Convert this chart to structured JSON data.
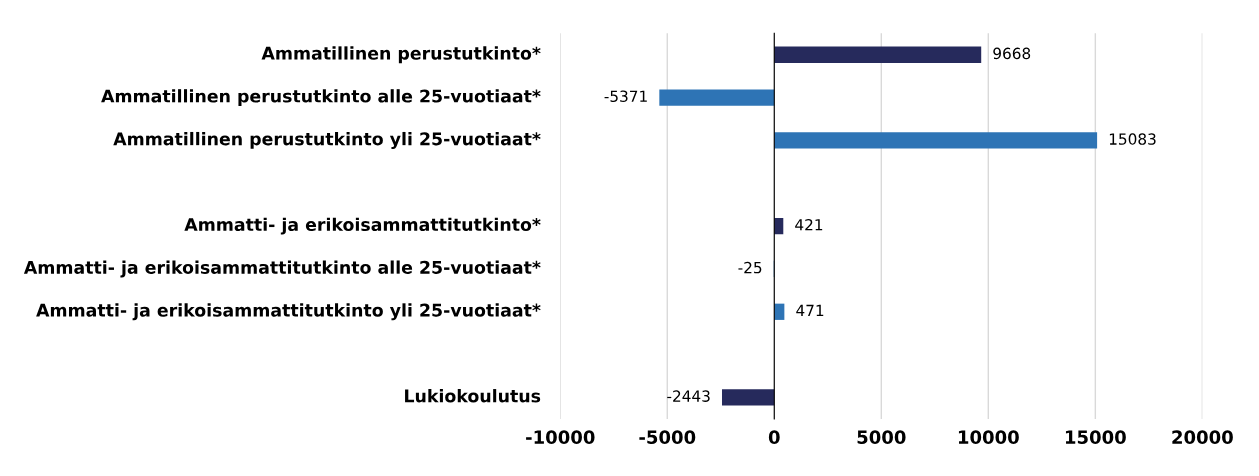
{
  "chart_data": {
    "type": "bar",
    "orientation": "horizontal",
    "categories": [
      "Ammatillinen perustutkinto*",
      "Ammatillinen perustutkinto alle 25-vuotiaat*",
      "Ammatillinen perustutkinto yli 25-vuotiaat*",
      null,
      "Ammatti- ja erikoisammattitutkinto*",
      "Ammatti- ja erikoisammattitutkinto alle 25-vuotiaat*",
      "Ammatti- ja erikoisammattitutkinto yli 25-vuotiaat*",
      null,
      "Lukiokoulutus"
    ],
    "values": [
      9668,
      -5371,
      15083,
      null,
      421,
      -25,
      471,
      null,
      -2443
    ],
    "colors": [
      "#262a5c",
      "#2e74b5",
      "#2e74b5",
      null,
      "#262a5c",
      "#2e74b5",
      "#2e74b5",
      null,
      "#262a5c"
    ],
    "xlim": [
      -10000,
      20000
    ],
    "xticks": [
      -10000,
      -5000,
      0,
      5000,
      10000,
      15000,
      20000
    ],
    "grid": "x",
    "data_labels": true
  }
}
